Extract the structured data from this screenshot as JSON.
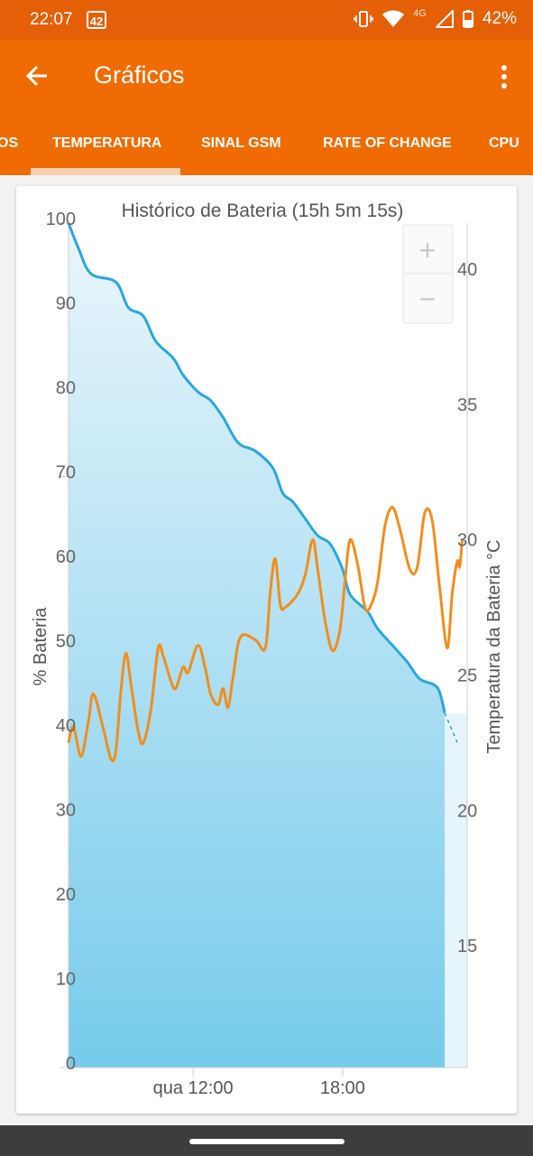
{
  "status_bar": {
    "time": "22:07",
    "notification_badge": "42",
    "network": "4G",
    "battery": "42%"
  },
  "app_bar": {
    "title": "Gráficos"
  },
  "tabs": [
    {
      "label": "OS"
    },
    {
      "label": "TEMPERATURA",
      "selected": true
    },
    {
      "label": "SINAL GSM"
    },
    {
      "label": "RATE OF CHANGE"
    },
    {
      "label": "CPU"
    }
  ],
  "colors": {
    "status_bar": "#e55f06",
    "app_bar": "#f06c02",
    "battery_line": "#2aa7da",
    "temperature_line": "#f18e1c"
  },
  "chart_data": {
    "type": "area",
    "title": "Histórico de Bateria (15h 5m 15s)",
    "ylabel": "% Bateria",
    "y2label": "Temperatura da Bateria °C",
    "xticks": [
      {
        "label": "qua 12:00",
        "t": 12
      },
      {
        "label": "18:00",
        "t": 18
      }
    ],
    "xlim": [
      7.0,
      23.0
    ],
    "ylim": [
      0,
      100
    ],
    "y2lim": [
      10.5,
      41.7
    ],
    "yticks": [
      "0",
      "10",
      "20",
      "30",
      "40",
      "50",
      "60",
      "70",
      "80",
      "90",
      "100"
    ],
    "y2ticks": [
      "15",
      "20",
      "25",
      "30",
      "35",
      "40"
    ],
    "zoom": {
      "in": "+",
      "out": "−"
    },
    "series": [
      {
        "axis": "left",
        "points": [
          [
            7.0,
            100
          ],
          [
            7.4,
            97
          ],
          [
            7.9,
            94
          ],
          [
            8.9,
            93
          ],
          [
            9.4,
            90
          ],
          [
            10.0,
            89
          ],
          [
            10.5,
            86
          ],
          [
            11.2,
            84
          ],
          [
            11.6,
            82
          ],
          [
            12.2,
            80
          ],
          [
            12.7,
            79
          ],
          [
            13.2,
            77
          ],
          [
            13.8,
            74
          ],
          [
            14.5,
            73
          ],
          [
            15.2,
            71
          ],
          [
            15.6,
            68
          ],
          [
            16.0,
            67
          ],
          [
            16.5,
            65
          ],
          [
            17.0,
            63
          ],
          [
            17.5,
            62
          ],
          [
            18.0,
            59
          ],
          [
            18.3,
            56
          ],
          [
            19.0,
            54
          ],
          [
            19.4,
            52
          ],
          [
            20.0,
            50
          ],
          [
            20.6,
            48
          ],
          [
            21.1,
            46
          ],
          [
            21.8,
            45
          ],
          [
            22.1,
            42
          ]
        ],
        "projection": [
          [
            22.1,
            42
          ],
          [
            22.6,
            38.5
          ]
        ]
      },
      {
        "axis": "right",
        "points": [
          [
            7.0,
            22.5
          ],
          [
            7.2,
            23.1
          ],
          [
            7.5,
            22.0
          ],
          [
            7.8,
            23.3
          ],
          [
            8.0,
            24.3
          ],
          [
            8.4,
            23.0
          ],
          [
            8.7,
            21.9
          ],
          [
            8.9,
            22.2
          ],
          [
            9.1,
            24.4
          ],
          [
            9.3,
            25.8
          ],
          [
            9.5,
            24.7
          ],
          [
            9.8,
            22.9
          ],
          [
            10.0,
            22.5
          ],
          [
            10.3,
            23.7
          ],
          [
            10.6,
            26.0
          ],
          [
            10.8,
            25.7
          ],
          [
            11.1,
            24.8
          ],
          [
            11.3,
            24.5
          ],
          [
            11.6,
            25.3
          ],
          [
            11.8,
            25.1
          ],
          [
            12.2,
            26.1
          ],
          [
            12.5,
            25.2
          ],
          [
            12.7,
            24.3
          ],
          [
            13.0,
            23.9
          ],
          [
            13.2,
            24.5
          ],
          [
            13.4,
            23.8
          ],
          [
            13.6,
            24.9
          ],
          [
            13.9,
            26.4
          ],
          [
            14.5,
            26.3
          ],
          [
            14.9,
            26.0
          ],
          [
            15.1,
            28.1
          ],
          [
            15.3,
            29.3
          ],
          [
            15.5,
            27.6
          ],
          [
            15.7,
            27.5
          ],
          [
            16.2,
            28.0
          ],
          [
            16.5,
            28.7
          ],
          [
            16.8,
            30.0
          ],
          [
            17.0,
            28.9
          ],
          [
            17.3,
            27.0
          ],
          [
            17.6,
            25.9
          ],
          [
            17.9,
            26.7
          ],
          [
            18.1,
            28.5
          ],
          [
            18.3,
            30.0
          ],
          [
            18.6,
            29.1
          ],
          [
            18.9,
            27.5
          ],
          [
            19.1,
            27.5
          ],
          [
            19.4,
            28.4
          ],
          [
            19.7,
            30.5
          ],
          [
            20.0,
            31.2
          ],
          [
            20.3,
            30.4
          ],
          [
            20.7,
            28.9
          ],
          [
            21.0,
            29.0
          ],
          [
            21.3,
            31.0
          ],
          [
            21.6,
            30.7
          ],
          [
            21.9,
            28.2
          ],
          [
            22.2,
            26.0
          ],
          [
            22.4,
            28.0
          ],
          [
            22.6,
            29.2
          ],
          [
            22.7,
            29.0
          ],
          [
            22.8,
            30.0
          ]
        ]
      }
    ]
  }
}
